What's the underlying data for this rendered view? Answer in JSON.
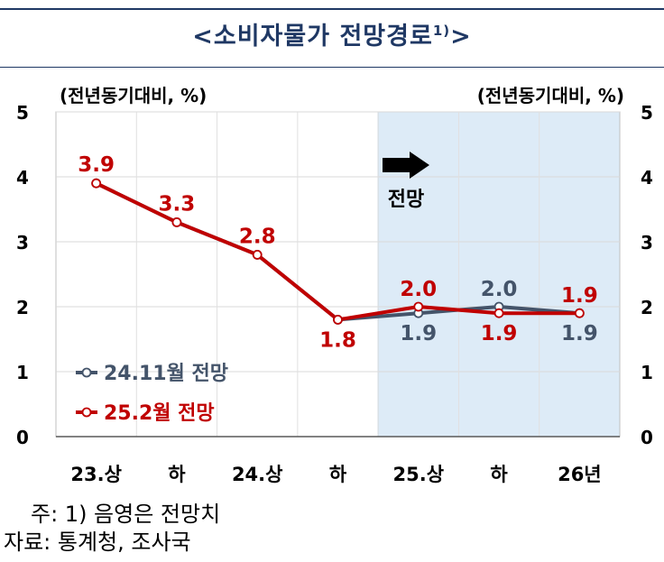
{
  "title": "<소비자물가 전망경로",
  "title_sup": "1)",
  "title_close": ">",
  "chart_data": {
    "type": "line",
    "categories": [
      "23.상",
      "하",
      "24.상",
      "하",
      "25.상",
      "하",
      "26년"
    ],
    "unit_left": "(전년동기대비, %)",
    "unit_right": "(전년동기대비, %)",
    "ylim": [
      0,
      5
    ],
    "yticks": [
      "0",
      "1",
      "2",
      "3",
      "4",
      "5"
    ],
    "forecast_label": "전망",
    "forecast_start_index": 4,
    "series": [
      {
        "name": "24.11월 전망",
        "color": "#44546a",
        "values": [
          3.9,
          3.3,
          2.8,
          1.8,
          1.9,
          2.0,
          1.9
        ],
        "labels": [
          "",
          "",
          "",
          "",
          "1.9",
          "2.0",
          "1.9"
        ]
      },
      {
        "name": "25.2월 전망",
        "color": "#c00000",
        "values": [
          3.9,
          3.3,
          2.8,
          1.8,
          2.0,
          1.9,
          1.9
        ],
        "labels": [
          "3.9",
          "3.3",
          "2.8",
          "1.8",
          "2.0",
          "1.9",
          "1.9"
        ]
      }
    ],
    "grid": true,
    "legend_position": "bottom-left"
  },
  "notes": [
    "주: 1) 음영은 전망치",
    "자료: 통계청, 조사국"
  ],
  "colors": {
    "title": "#1f3864",
    "shade": "#ddebf7",
    "grid": "#d9d9d9"
  }
}
